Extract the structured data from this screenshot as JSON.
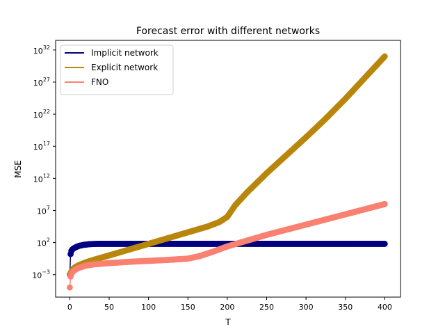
{
  "chart_data": {
    "type": "line",
    "title": "Forecast error with different networks",
    "xlabel": "T",
    "ylabel": "MSE",
    "xlim": [
      -18,
      420
    ],
    "ylim_log10": [
      -6.5,
      33.5
    ],
    "yscale": "log",
    "grid": false,
    "legend_position": "top-left",
    "x_ticks": [
      0,
      50,
      100,
      150,
      200,
      250,
      300,
      350,
      400
    ],
    "y_ticks": [
      {
        "base": "10",
        "exp": "−3",
        "log10": -3
      },
      {
        "base": "10",
        "exp": "2",
        "log10": 2
      },
      {
        "base": "10",
        "exp": "7",
        "log10": 7
      },
      {
        "base": "10",
        "exp": "12",
        "log10": 12
      },
      {
        "base": "10",
        "exp": "17",
        "log10": 17
      },
      {
        "base": "10",
        "exp": "22",
        "log10": 22
      },
      {
        "base": "10",
        "exp": "27",
        "log10": 27
      },
      {
        "base": "10",
        "exp": "32",
        "log10": 32
      }
    ],
    "series": [
      {
        "name": "Implicit network",
        "color": "#000080",
        "x": [
          0,
          1,
          2,
          3,
          5,
          8,
          12,
          18,
          25,
          35,
          50,
          80,
          150,
          250,
          350,
          400
        ],
        "log10_y": [
          -3.0,
          0.2,
          0.7,
          0.9,
          1.1,
          1.3,
          1.5,
          1.65,
          1.75,
          1.8,
          1.8,
          1.8,
          1.8,
          1.8,
          1.8,
          1.8
        ]
      },
      {
        "name": "Explicit network",
        "color": "#b8860b",
        "x": [
          0,
          2,
          5,
          10,
          20,
          30,
          50,
          75,
          100,
          125,
          150,
          175,
          190,
          200,
          210,
          225,
          250,
          275,
          300,
          325,
          350,
          375,
          400
        ],
        "log10_y": [
          -3.0,
          -2.5,
          -2.0,
          -1.6,
          -1.1,
          -0.7,
          0.0,
          0.9,
          1.8,
          2.7,
          3.6,
          4.5,
          5.2,
          6.0,
          7.8,
          9.8,
          12.8,
          15.6,
          18.4,
          21.3,
          24.4,
          27.7,
          31.0
        ]
      },
      {
        "name": "FNO",
        "color": "#fa8072",
        "x": [
          0,
          1,
          2,
          3,
          5,
          10,
          20,
          30,
          50,
          75,
          100,
          125,
          150,
          165,
          180,
          200,
          225,
          250,
          275,
          300,
          325,
          350,
          375,
          400
        ],
        "log10_y": [
          -5.0,
          -3.3,
          -2.9,
          -2.7,
          -2.4,
          -2.0,
          -1.6,
          -1.4,
          -1.2,
          -1.0,
          -0.85,
          -0.7,
          -0.5,
          -0.1,
          0.5,
          1.4,
          2.3,
          3.2,
          4.0,
          4.8,
          5.6,
          6.4,
          7.2,
          8.0
        ]
      }
    ]
  }
}
